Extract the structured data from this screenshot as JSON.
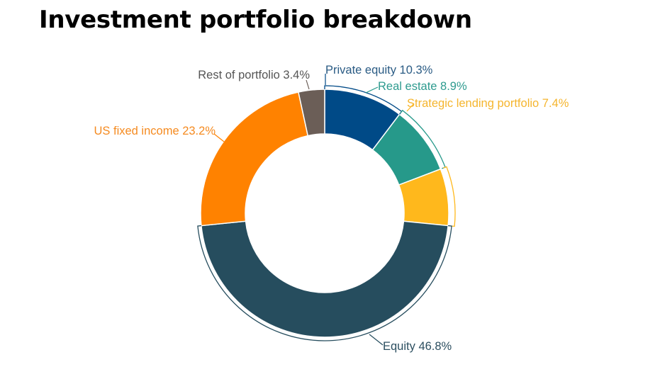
{
  "chart_data": {
    "type": "pie",
    "variant": "donut",
    "title": "Investment portfolio breakdown",
    "slices": [
      {
        "name": "Private equity",
        "value": 10.3,
        "label": "Private equity  10.3%",
        "color": "#004a87"
      },
      {
        "name": "Real estate",
        "value": 8.9,
        "label": "Real estate 8.9%",
        "color": "#26998a"
      },
      {
        "name": "Strategic lending portfolio",
        "value": 7.4,
        "label": "Strategic lending portfolio  7.4%",
        "color": "#ffb81c"
      },
      {
        "name": "Equity",
        "value": 46.8,
        "label": "Equity 46.8%",
        "color": "#264d5e"
      },
      {
        "name": "US fixed income",
        "value": 23.2,
        "label": "US fixed income 23.2%",
        "color": "#ff8200"
      },
      {
        "name": "Rest of portfolio",
        "value": 3.4,
        "label": "Rest of portfolio 3.4%",
        "color": "#6b5e57"
      }
    ],
    "label_colors": {
      "Private equity": "#2a5b84",
      "Real estate": "#2e9b8f",
      "Strategic lending portfolio": "#f5b52e",
      "Equity": "#2c4f60",
      "US fixed income": "#f58a1f",
      "Rest of portfolio": "#555555"
    },
    "legend": "none"
  }
}
